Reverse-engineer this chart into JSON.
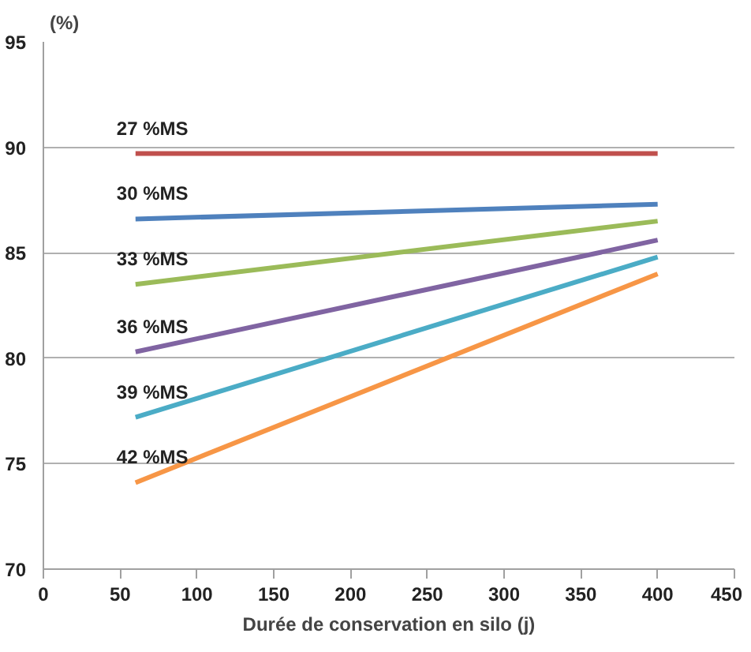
{
  "chart_data": {
    "type": "line",
    "ylabel": "(%)",
    "xlabel": "Durée de conservation en silo (j)",
    "x": [
      60,
      400
    ],
    "series": [
      {
        "name": "27 %MS",
        "color": "#c0504d",
        "values": [
          89.7,
          89.7
        ]
      },
      {
        "name": "30 %MS",
        "color": "#4f81bd",
        "values": [
          86.6,
          87.3
        ]
      },
      {
        "name": "33 %MS",
        "color": "#9bbb59",
        "values": [
          83.5,
          86.5
        ]
      },
      {
        "name": "36 %MS",
        "color": "#8064a2",
        "values": [
          80.3,
          85.6
        ]
      },
      {
        "name": "39 %MS",
        "color": "#4bacc6",
        "values": [
          77.2,
          84.8
        ]
      },
      {
        "name": "42 %MS",
        "color": "#f79646",
        "values": [
          74.1,
          84.0
        ]
      }
    ],
    "xlim": [
      0,
      450
    ],
    "xticks": [
      0,
      50,
      100,
      150,
      200,
      250,
      300,
      350,
      400,
      450
    ],
    "ylim": [
      70,
      95
    ],
    "yticks": [
      70,
      75,
      80,
      85,
      90,
      95
    ],
    "grid": "y",
    "marker": "none",
    "line_style": "solid"
  }
}
